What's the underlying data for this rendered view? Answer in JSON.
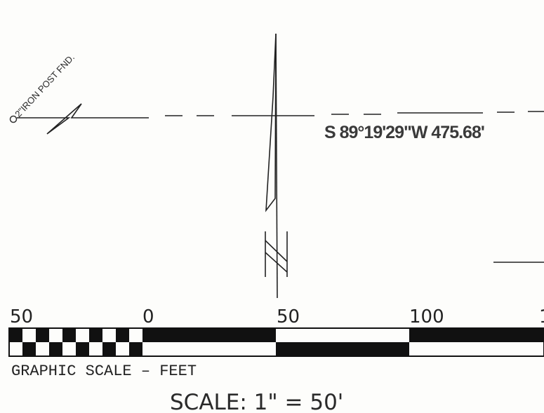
{
  "annotations": {
    "monument_label": "2\"IRON POST FND.",
    "bearing_distance": "S 89°19'29\"W 475.68'"
  },
  "graphic_scale": {
    "tick_labels": [
      "50",
      "0",
      "50",
      "100",
      "1"
    ],
    "caption": "GRAPHIC SCALE – FEET",
    "scale_note": "SCALE: 1\" = 50'"
  },
  "colors": {
    "ink": "#1a1a1a",
    "paper": "#fdfdfb"
  }
}
